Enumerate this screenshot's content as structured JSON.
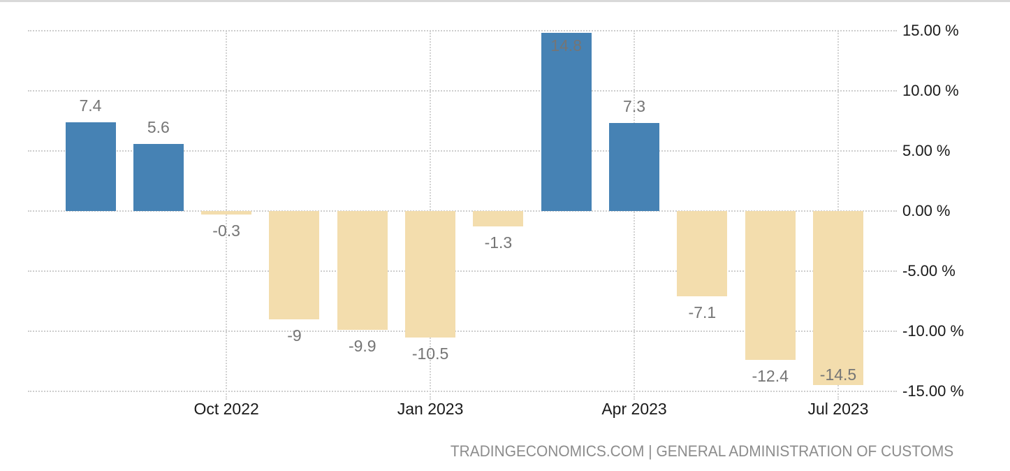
{
  "chart_data": {
    "type": "bar",
    "values": [
      7.4,
      5.6,
      -0.3,
      -9,
      -9.9,
      -10.5,
      -1.3,
      14.8,
      7.3,
      -7.1,
      -12.4,
      -14.5
    ],
    "value_labels": [
      "7.4",
      "5.6",
      "-0.3",
      "-9",
      "-9.9",
      "-10.5",
      "-1.3",
      "14.8",
      "7.3",
      "-7.1",
      "-12.4",
      "-14.5"
    ],
    "x_tick_labels": [
      "Oct 2022",
      "Jan 2023",
      "Apr 2023",
      "Jul 2023"
    ],
    "x_tick_bar_indices": [
      2,
      5,
      8,
      11
    ],
    "y_tick_labels": [
      "15.00 %",
      "10.00 %",
      "5.00 %",
      "0.00 %",
      "-5.00 %",
      "-10.00 %",
      "-15.00 %"
    ],
    "y_tick_values": [
      15,
      10,
      5,
      0,
      -5,
      -10,
      -15
    ],
    "ylim": [
      -15,
      15
    ],
    "grid": "dotted",
    "legend": "none",
    "title": "",
    "xlabel": "",
    "ylabel": "",
    "colors": {
      "positive_bar": "#4682b4",
      "negative_bar": "#f3ddad",
      "value_label": "#757575",
      "axis_text": "#1a1a1a",
      "gridline": "#cdcdcd",
      "top_border": "#d9d9d9",
      "footer_text": "#8c8c8c"
    }
  },
  "footer": {
    "text": "TRADINGECONOMICS.COM | GENERAL ADMINISTRATION OF CUSTOMS"
  }
}
